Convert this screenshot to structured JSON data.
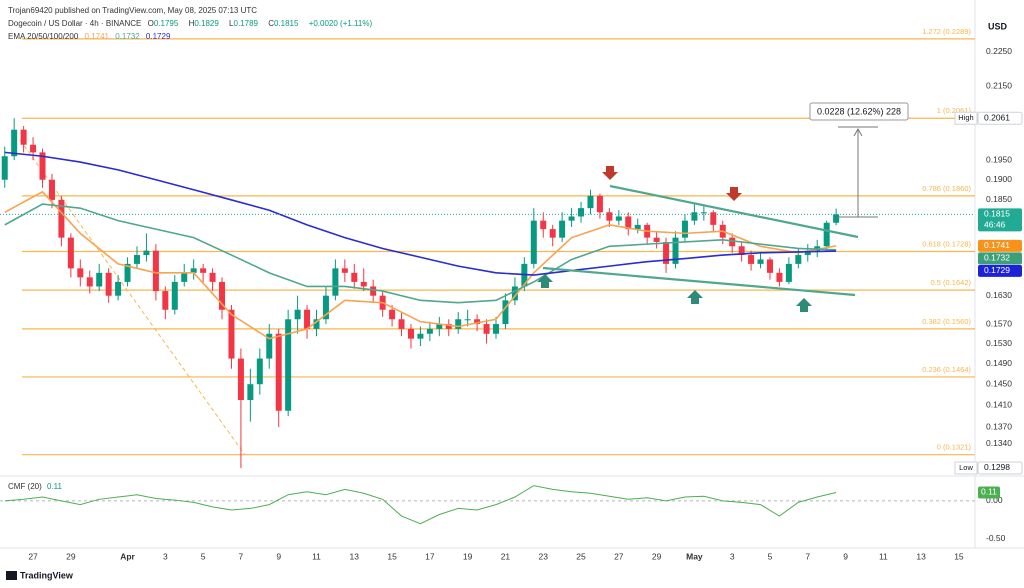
{
  "header": {
    "publisher": "Trojan69420 published on TradingView.com, May 08, 2025 07:13 UTC",
    "symbol": "Dogecoin / US Dollar · 4h · BINANCE",
    "ohlc_labels": [
      "O",
      "H",
      "L",
      "C"
    ],
    "change": "+0.0020 (+1.11%)",
    "currency": "USD"
  },
  "footer": {
    "brand": "TradingView"
  },
  "chart_data": [
    {
      "type": "candlestick",
      "scale": "log",
      "legend_title": "EMA 20/50/100/200",
      "up_color": "#089981",
      "down_color": "#f23645",
      "open": [
        0.19,
        0.196,
        0.203,
        0.199,
        0.197,
        0.19,
        0.185,
        0.176,
        0.169,
        0.167,
        0.165,
        0.168,
        0.163,
        0.166,
        0.17,
        0.172,
        0.173,
        0.164,
        0.16,
        0.166,
        0.168,
        0.169,
        0.168,
        0.166,
        0.16,
        0.15,
        0.142,
        0.145,
        0.15,
        0.155,
        0.14,
        0.158,
        0.16,
        0.156,
        0.158,
        0.163,
        0.169,
        0.168,
        0.166,
        0.165,
        0.163,
        0.16,
        0.158,
        0.156,
        0.154,
        0.155,
        0.156,
        0.157,
        0.156,
        0.158,
        0.158,
        0.157,
        0.155,
        0.157,
        0.162,
        0.165,
        0.17,
        0.18,
        0.178,
        0.176,
        0.18,
        0.181,
        0.183,
        0.186,
        0.182,
        0.18,
        0.181,
        0.178,
        0.179,
        0.176,
        0.175,
        0.17,
        0.176,
        0.18,
        0.182,
        0.182,
        0.179,
        0.176,
        0.174,
        0.172,
        0.17,
        0.171,
        0.168,
        0.166,
        0.17,
        0.172,
        0.173,
        0.174,
        0.1795
      ],
      "high": [
        0.1985,
        0.2061,
        0.204,
        0.201,
        0.198,
        0.1915,
        0.186,
        0.177,
        0.171,
        0.1685,
        0.17,
        0.169,
        0.1675,
        0.1715,
        0.174,
        0.177,
        0.1745,
        0.165,
        0.1675,
        0.17,
        0.171,
        0.17,
        0.169,
        0.167,
        0.161,
        0.152,
        0.148,
        0.152,
        0.157,
        0.156,
        0.16,
        0.163,
        0.161,
        0.16,
        0.165,
        0.171,
        0.171,
        0.17,
        0.169,
        0.1665,
        0.164,
        0.161,
        0.1595,
        0.157,
        0.1565,
        0.1575,
        0.1585,
        0.158,
        0.1595,
        0.16,
        0.159,
        0.158,
        0.1585,
        0.1635,
        0.167,
        0.1715,
        0.183,
        0.182,
        0.179,
        0.182,
        0.183,
        0.1845,
        0.1875,
        0.1865,
        0.183,
        0.1825,
        0.182,
        0.1805,
        0.1795,
        0.1775,
        0.176,
        0.1775,
        0.1815,
        0.184,
        0.1835,
        0.1825,
        0.18,
        0.177,
        0.175,
        0.173,
        0.1725,
        0.1715,
        0.169,
        0.1715,
        0.1735,
        0.1745,
        0.1755,
        0.18,
        0.1829
      ],
      "low": [
        0.188,
        0.195,
        0.197,
        0.195,
        0.188,
        0.183,
        0.174,
        0.167,
        0.165,
        0.1635,
        0.164,
        0.1615,
        0.162,
        0.165,
        0.169,
        0.1705,
        0.162,
        0.158,
        0.159,
        0.165,
        0.1665,
        0.166,
        0.164,
        0.158,
        0.148,
        0.1298,
        0.138,
        0.143,
        0.148,
        0.137,
        0.139,
        0.155,
        0.154,
        0.1545,
        0.157,
        0.162,
        0.166,
        0.1645,
        0.164,
        0.1615,
        0.1585,
        0.1565,
        0.1545,
        0.152,
        0.1525,
        0.1535,
        0.1545,
        0.1545,
        0.155,
        0.1565,
        0.1555,
        0.153,
        0.154,
        0.156,
        0.161,
        0.164,
        0.169,
        0.176,
        0.174,
        0.175,
        0.1785,
        0.1795,
        0.1815,
        0.1805,
        0.1785,
        0.179,
        0.1765,
        0.177,
        0.1745,
        0.1735,
        0.168,
        0.169,
        0.175,
        0.179,
        0.18,
        0.1775,
        0.1745,
        0.1725,
        0.1705,
        0.1685,
        0.169,
        0.1665,
        0.165,
        0.1655,
        0.169,
        0.1705,
        0.1715,
        0.173,
        0.1789
      ],
      "close": [
        0.196,
        0.203,
        0.199,
        0.197,
        0.19,
        0.185,
        0.176,
        0.169,
        0.167,
        0.165,
        0.168,
        0.163,
        0.166,
        0.17,
        0.172,
        0.173,
        0.164,
        0.16,
        0.166,
        0.168,
        0.169,
        0.168,
        0.166,
        0.16,
        0.15,
        0.142,
        0.145,
        0.15,
        0.155,
        0.14,
        0.158,
        0.16,
        0.156,
        0.158,
        0.163,
        0.169,
        0.168,
        0.166,
        0.165,
        0.163,
        0.16,
        0.158,
        0.156,
        0.154,
        0.155,
        0.156,
        0.157,
        0.156,
        0.158,
        0.158,
        0.157,
        0.155,
        0.157,
        0.162,
        0.165,
        0.17,
        0.18,
        0.178,
        0.176,
        0.18,
        0.181,
        0.183,
        0.186,
        0.182,
        0.18,
        0.181,
        0.178,
        0.179,
        0.176,
        0.175,
        0.17,
        0.176,
        0.18,
        0.182,
        0.182,
        0.179,
        0.176,
        0.174,
        0.172,
        0.17,
        0.171,
        0.168,
        0.166,
        0.17,
        0.172,
        0.173,
        0.174,
        0.1795,
        0.1815
      ],
      "series": [
        {
          "color": "#f7a350",
          "x": [
            0,
            4,
            8,
            12,
            16,
            20,
            24,
            28,
            32,
            36,
            40,
            44,
            48,
            52,
            56,
            60,
            64,
            68,
            72,
            76,
            80,
            84,
            88
          ],
          "values": [
            0.182,
            0.187,
            0.177,
            0.17,
            0.168,
            0.168,
            0.159,
            0.154,
            0.156,
            0.162,
            0.1615,
            0.1575,
            0.1565,
            0.158,
            0.168,
            0.176,
            0.179,
            0.1775,
            0.177,
            0.1775,
            0.174,
            0.1725,
            0.1741
          ]
        },
        {
          "color": "#4fa88c",
          "x": [
            0,
            4,
            8,
            12,
            16,
            20,
            24,
            28,
            32,
            36,
            40,
            44,
            48,
            52,
            56,
            60,
            64,
            68,
            72,
            76,
            80,
            84,
            88
          ],
          "values": [
            0.179,
            0.184,
            0.183,
            0.18,
            0.178,
            0.176,
            0.172,
            0.168,
            0.165,
            0.165,
            0.164,
            0.162,
            0.1615,
            0.162,
            0.166,
            0.171,
            0.174,
            0.1745,
            0.175,
            0.1755,
            0.1745,
            0.1735,
            0.1732
          ]
        },
        {
          "color": "#2a2bd0",
          "x": [
            0,
            4,
            8,
            12,
            16,
            20,
            24,
            28,
            32,
            36,
            40,
            44,
            48,
            52,
            56,
            60,
            64,
            68,
            72,
            76,
            80,
            84,
            88
          ],
          "values": [
            0.197,
            0.196,
            0.1945,
            0.1925,
            0.19,
            0.1875,
            0.185,
            0.1825,
            0.179,
            0.176,
            0.1735,
            0.1715,
            0.1695,
            0.168,
            0.1675,
            0.1685,
            0.1695,
            0.1705,
            0.1712,
            0.172,
            0.1725,
            0.1727,
            0.1729
          ]
        }
      ],
      "xlim": [
        -0.5,
        102.7
      ],
      "xticks": [
        {
          "value": 3,
          "label": "27"
        },
        {
          "value": 7,
          "label": "29"
        },
        {
          "value": 13,
          "label": "Apr"
        },
        {
          "value": 17,
          "label": "3"
        },
        {
          "value": 21,
          "label": "5"
        },
        {
          "value": 25,
          "label": "7"
        },
        {
          "value": 29,
          "label": "9"
        },
        {
          "value": 33,
          "label": "11"
        },
        {
          "value": 37,
          "label": "13"
        },
        {
          "value": 41,
          "label": "15"
        },
        {
          "value": 45,
          "label": "17"
        },
        {
          "value": 49,
          "label": "19"
        },
        {
          "value": 53,
          "label": "21"
        },
        {
          "value": 57,
          "label": "23"
        },
        {
          "value": 61,
          "label": "25"
        },
        {
          "value": 65,
          "label": "27"
        },
        {
          "value": 69,
          "label": "29"
        },
        {
          "value": 73,
          "label": "May"
        },
        {
          "value": 77,
          "label": "3"
        },
        {
          "value": 81,
          "label": "5"
        },
        {
          "value": 85,
          "label": "7"
        },
        {
          "value": 89,
          "label": "9"
        },
        {
          "value": 93,
          "label": "11"
        },
        {
          "value": 97,
          "label": "13"
        },
        {
          "value": 101,
          "label": "15"
        }
      ],
      "ylim": [
        0.1286,
        0.2353
      ],
      "yticks": [
        {
          "value": 0.225,
          "label": "0.2250"
        },
        {
          "value": 0.215,
          "label": "0.2150"
        },
        {
          "value": 0.195,
          "label": "0.1950"
        },
        {
          "value": 0.19,
          "label": "0.1900"
        },
        {
          "value": 0.185,
          "label": "0.1850"
        },
        {
          "value": 0.163,
          "label": "0.1630"
        },
        {
          "value": 0.157,
          "label": "0.1570"
        },
        {
          "value": 0.153,
          "label": "0.1530"
        },
        {
          "value": 0.149,
          "label": "0.1490"
        },
        {
          "value": 0.145,
          "label": "0.1450"
        },
        {
          "value": 0.141,
          "label": "0.1410"
        },
        {
          "value": 0.137,
          "label": "0.1370"
        },
        {
          "value": 0.134,
          "label": "0.1340"
        }
      ],
      "level_color": "#f5b74e",
      "levels": [
        {
          "value": 0.2289,
          "label": "1.272 (0.2289)"
        },
        {
          "value": 0.2061,
          "label": "1 (0.2061)"
        },
        {
          "value": 0.186,
          "label": "0.786 (0.1860)"
        },
        {
          "value": 0.1728,
          "label": "0.618 (0.1728)"
        },
        {
          "value": 0.1642,
          "label": "0.5 (0.1642)"
        },
        {
          "value": 0.156,
          "label": "0.382 (0.1560)"
        },
        {
          "value": 0.1464,
          "label": "0.236 (0.1464)"
        },
        {
          "value": 0.1321,
          "label": "0 (0.1321)"
        }
      ],
      "price_tags": [
        {
          "value": 0.2061,
          "tag": "High",
          "color": "#ffffff"
        },
        {
          "value": 0.1815,
          "tag": "46:46",
          "color": "#22ab94",
          "line": true
        },
        {
          "value": 0.1741,
          "color": "#f7931a"
        },
        {
          "value": 0.1732,
          "color": "#3d9f7a"
        },
        {
          "value": 0.1729,
          "color": "#1e22d6"
        },
        {
          "value": 0.1298,
          "tag": "Low",
          "color": "#ffffff"
        }
      ],
      "measure": "0.0228 (12.62%) 228"
    },
    {
      "type": "line",
      "title": "CMF (20)",
      "color": "#4caf50",
      "x": [
        0,
        2,
        4,
        6,
        8,
        10,
        12,
        14,
        16,
        18,
        20,
        22,
        24,
        26,
        28,
        30,
        32,
        34,
        36,
        38,
        40,
        42,
        44,
        46,
        48,
        50,
        52,
        54,
        56,
        58,
        60,
        62,
        64,
        66,
        68,
        70,
        72,
        74,
        76,
        78,
        80,
        82,
        84,
        86,
        88
      ],
      "values": [
        0.0,
        0.02,
        0.05,
        0.0,
        -0.05,
        0.02,
        0.05,
        0.08,
        0.03,
        0.01,
        -0.02,
        -0.08,
        -0.12,
        -0.1,
        -0.05,
        0.08,
        0.12,
        0.08,
        0.15,
        0.1,
        0.02,
        -0.2,
        -0.3,
        -0.18,
        -0.1,
        -0.12,
        -0.05,
        0.05,
        0.2,
        0.15,
        0.12,
        0.1,
        0.06,
        0.02,
        0.04,
        0.0,
        0.05,
        0.06,
        0.0,
        -0.02,
        -0.05,
        -0.2,
        -0.02,
        0.05,
        0.11
      ],
      "xlim": [
        -0.5,
        102.7
      ],
      "ylim": [
        -0.62,
        0.3
      ],
      "yticks": [
        {
          "value": 0,
          "label": "0.00"
        },
        {
          "value": -0.5,
          "label": "-0.50"
        }
      ]
    }
  ]
}
